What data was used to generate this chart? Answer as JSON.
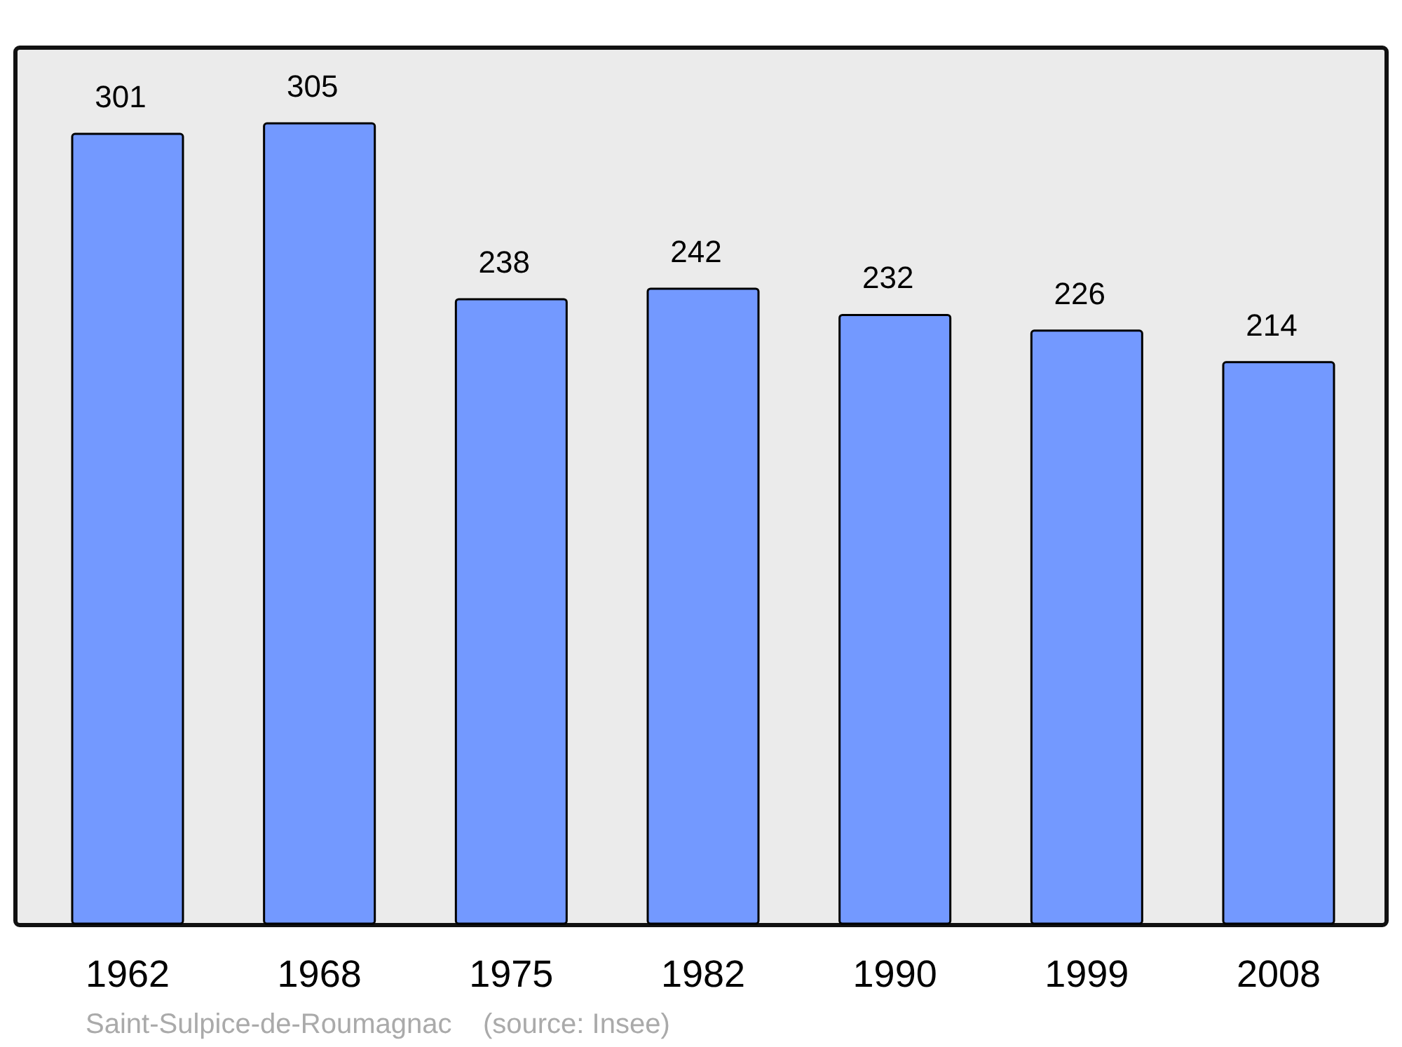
{
  "chart_data": {
    "type": "bar",
    "categories": [
      "1962",
      "1968",
      "1975",
      "1982",
      "1990",
      "1999",
      "2008"
    ],
    "values": [
      301,
      305,
      238,
      242,
      232,
      226,
      214
    ],
    "color": "#7399ff",
    "data_labels": true,
    "annotations": [
      "Saint-Sulpice-de-Roumagnac    (source: Insee)"
    ]
  }
}
